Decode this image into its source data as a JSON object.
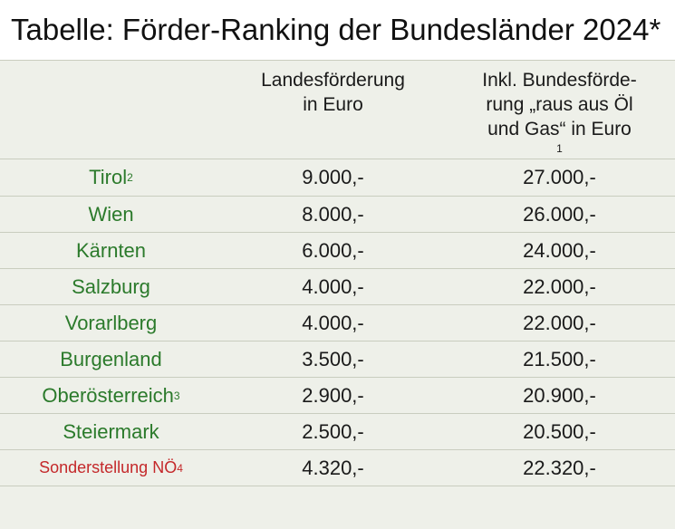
{
  "title": "Tabelle: Förder-Ranking der Bundesländer 2024*",
  "headers": {
    "col1": "",
    "col2_line1": "Landesförderung",
    "col2_line2": "in Euro",
    "col3_line1": "Inkl. Bundesförde-",
    "col3_line2": "rung „raus aus Öl",
    "col3_line3": "und Gas“ in Euro",
    "col3_sup": "1"
  },
  "rows": [
    {
      "name": "Tirol",
      "sup": "2",
      "landes": "9.000,-",
      "bundes": "27.000,-"
    },
    {
      "name": "Wien",
      "sup": "",
      "landes": "8.000,-",
      "bundes": "26.000,-"
    },
    {
      "name": "Kärnten",
      "sup": "",
      "landes": "6.000,-",
      "bundes": "24.000,-"
    },
    {
      "name": "Salzburg",
      "sup": "",
      "landes": "4.000,-",
      "bundes": "22.000,-"
    },
    {
      "name": "Vorarlberg",
      "sup": "",
      "landes": "4.000,-",
      "bundes": "22.000,-"
    },
    {
      "name": "Burgenland",
      "sup": "",
      "landes": "3.500,-",
      "bundes": "21.500,-"
    },
    {
      "name": "Oberösterreich",
      "sup": "3",
      "landes": "2.900,-",
      "bundes": "20.900,-"
    },
    {
      "name": "Steiermark",
      "sup": "",
      "landes": "2.500,-",
      "bundes": "20.500,-"
    },
    {
      "name": "Sonderstellung NÖ",
      "sup": "4",
      "landes": "4.320,-",
      "bundes": "22.320,-"
    }
  ],
  "colors": {
    "land_name": "#2b7a2b",
    "special_name": "#c4282a",
    "table_bg": "#eef0e9",
    "divider": "#c9cdbf"
  }
}
